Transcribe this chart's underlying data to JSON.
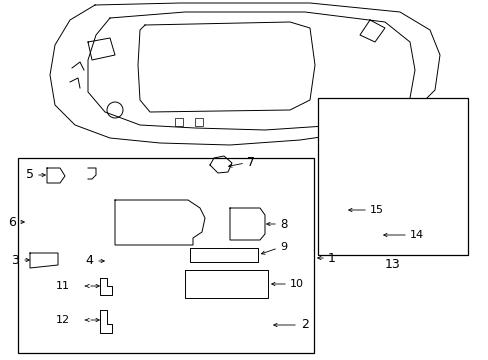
{
  "bg_color": "#ffffff",
  "line_color": "#000000",
  "fig_width": 4.89,
  "fig_height": 3.6,
  "dpi": 100,
  "lw": 0.7
}
